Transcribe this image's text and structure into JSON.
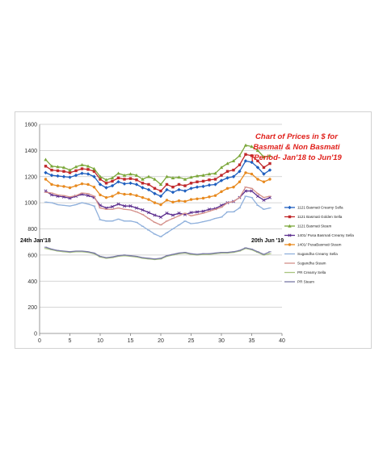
{
  "chart_data": {
    "type": "line",
    "title": [
      "Chart of Prices in $ for",
      "Basmati & Non Basmati",
      "(Period- Jan'18 to Jun'19"
    ],
    "xlabel": "",
    "ylabel": "",
    "xlim": [
      0,
      40
    ],
    "ylim": [
      0,
      1600
    ],
    "xticks": [
      0,
      5,
      10,
      15,
      20,
      25,
      30,
      35,
      40
    ],
    "yticks": [
      0,
      200,
      400,
      600,
      800,
      1000,
      1200,
      1400,
      1600
    ],
    "grid": "horizontal",
    "legend_position": "right",
    "annotations": [
      {
        "text": "24th Jan'18",
        "x": 1,
        "y": 655
      },
      {
        "text": "20th Jun '19",
        "x": 38,
        "y": 640
      }
    ],
    "x": [
      1,
      2,
      3,
      4,
      5,
      6,
      7,
      8,
      9,
      10,
      11,
      12,
      13,
      14,
      15,
      16,
      17,
      18,
      19,
      20,
      21,
      22,
      23,
      24,
      25,
      26,
      27,
      28,
      29,
      30,
      31,
      32,
      33,
      34,
      35,
      36,
      37,
      38
    ],
    "series": [
      {
        "name": "1121 Basmati Creamy Sella",
        "color": "#1f5fbf",
        "marker": "diamond",
        "values": [
          1230,
          1210,
          1205,
          1200,
          1195,
          1210,
          1225,
          1220,
          1200,
          1140,
          1115,
          1130,
          1160,
          1145,
          1150,
          1140,
          1115,
          1100,
          1070,
          1050,
          1100,
          1080,
          1100,
          1090,
          1110,
          1120,
          1125,
          1135,
          1140,
          1170,
          1190,
          1200,
          1240,
          1320,
          1310,
          1270,
          1220,
          1250
        ]
      },
      {
        "name": "1121 Basmati Golden Sella",
        "color": "#c0282b",
        "marker": "square",
        "values": [
          1280,
          1250,
          1245,
          1240,
          1230,
          1245,
          1260,
          1255,
          1240,
          1180,
          1150,
          1165,
          1190,
          1180,
          1185,
          1175,
          1150,
          1140,
          1110,
          1090,
          1140,
          1120,
          1140,
          1130,
          1150,
          1160,
          1165,
          1175,
          1180,
          1210,
          1240,
          1250,
          1290,
          1370,
          1360,
          1320,
          1270,
          1300
        ]
      },
      {
        "name": "1121 Basmati Steam",
        "color": "#7ba73a",
        "marker": "triangle",
        "values": [
          1330,
          1280,
          1275,
          1270,
          1250,
          1275,
          1290,
          1280,
          1260,
          1200,
          1175,
          1190,
          1225,
          1210,
          1220,
          1210,
          1180,
          1200,
          1180,
          1140,
          1200,
          1190,
          1195,
          1180,
          1195,
          1205,
          1210,
          1220,
          1225,
          1270,
          1300,
          1320,
          1360,
          1440,
          1430,
          1400,
          1350,
          1360
        ]
      },
      {
        "name": "1401/ Pusa Basmati Creamy Sella",
        "color": "#5b2d8e",
        "marker": "x",
        "values": [
          1090,
          1060,
          1050,
          1045,
          1035,
          1050,
          1065,
          1055,
          1040,
          980,
          960,
          970,
          990,
          975,
          975,
          960,
          945,
          925,
          905,
          890,
          920,
          905,
          920,
          910,
          925,
          930,
          935,
          950,
          955,
          980,
          1000,
          1010,
          1040,
          1090,
          1090,
          1050,
          1020,
          1040
        ]
      },
      {
        "name": "1401/ PusaBasmati Steam",
        "color": "#e88a1f",
        "marker": "circle",
        "values": [
          1180,
          1140,
          1130,
          1125,
          1115,
          1130,
          1145,
          1140,
          1120,
          1060,
          1040,
          1050,
          1075,
          1065,
          1065,
          1055,
          1040,
          1025,
          1000,
          985,
          1020,
          1005,
          1015,
          1010,
          1025,
          1030,
          1035,
          1045,
          1055,
          1085,
          1110,
          1120,
          1160,
          1230,
          1220,
          1180,
          1160,
          1180
        ]
      },
      {
        "name": "Sugandha Creamy Sella",
        "color": "#8fb0dc",
        "marker": "dash",
        "values": [
          1005,
          1000,
          985,
          980,
          975,
          985,
          1000,
          990,
          975,
          870,
          860,
          860,
          875,
          860,
          860,
          850,
          820,
          790,
          760,
          740,
          770,
          800,
          830,
          860,
          840,
          845,
          855,
          865,
          880,
          890,
          930,
          930,
          960,
          1050,
          1040,
          980,
          950,
          960
        ]
      },
      {
        "name": "Sugandha Steam",
        "color": "#d4908a",
        "marker": "dash",
        "values": [
          1080,
          1075,
          1060,
          1055,
          1045,
          1055,
          1075,
          1070,
          1050,
          960,
          950,
          950,
          960,
          950,
          945,
          930,
          910,
          880,
          850,
          830,
          860,
          880,
          900,
          920,
          900,
          910,
          920,
          935,
          950,
          965,
          1000,
          1010,
          1040,
          1120,
          1110,
          1070,
          1040,
          1050
        ]
      },
      {
        "name": "PR Creamy Sella",
        "color": "#a9c47f",
        "marker": "dash",
        "values": [
          650,
          640,
          630,
          625,
          620,
          625,
          625,
          620,
          610,
          585,
          575,
          580,
          590,
          595,
          590,
          585,
          575,
          570,
          565,
          570,
          590,
          600,
          610,
          615,
          605,
          600,
          605,
          605,
          610,
          615,
          615,
          620,
          630,
          650,
          640,
          620,
          600,
          610
        ]
      },
      {
        "name": "PR Steam",
        "color": "#7a7aa6",
        "marker": "dash",
        "values": [
          660,
          645,
          635,
          630,
          625,
          630,
          630,
          625,
          615,
          590,
          580,
          585,
          595,
          600,
          595,
          590,
          580,
          575,
          570,
          575,
          595,
          605,
          615,
          620,
          610,
          605,
          610,
          610,
          615,
          620,
          620,
          625,
          635,
          655,
          645,
          625,
          605,
          625
        ]
      }
    ]
  }
}
